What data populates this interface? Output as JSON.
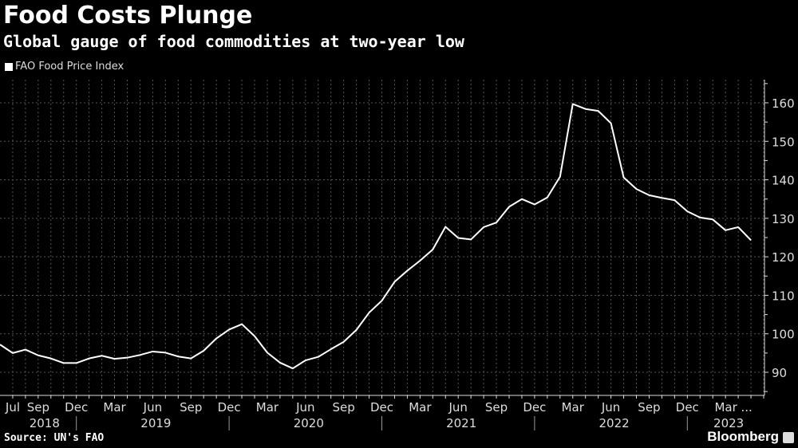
{
  "title": "Food Costs Plunge",
  "subtitle": "Global gauge of food commodities at two-year low",
  "source": "Source: UN's FAO",
  "brand": "Bloomberg",
  "chart_data": {
    "type": "line",
    "title": "Food Costs Plunge",
    "subtitle": "Global gauge of food commodities at two-year low",
    "legend_position": "top-left",
    "grid": true,
    "y_axis_side": "right",
    "ylim": [
      84,
      166
    ],
    "yticks": [
      90,
      100,
      110,
      120,
      130,
      140,
      150,
      160
    ],
    "x_start": "2018-06",
    "x_end": "2023-05",
    "x_tick_labels": [
      "Jul",
      "Sep",
      "Dec",
      "Mar",
      "Jun",
      "Sep",
      "Dec",
      "Mar",
      "Jun",
      "Sep",
      "Dec",
      "Mar",
      "Jun",
      "Sep",
      "Dec",
      "Mar",
      "Jun",
      "Sep",
      "Dec",
      "Mar ..."
    ],
    "x_year_labels": [
      "2018",
      "2019",
      "2020",
      "2021",
      "2022",
      "2023"
    ],
    "colors": {
      "line": "#ffffff",
      "background": "#000000",
      "grid": "#555555"
    },
    "series": [
      {
        "name": "FAO Food Price Index",
        "values": [
          97.2,
          95.0,
          95.9,
          94.4,
          93.6,
          92.4,
          92.4,
          93.6,
          94.3,
          93.5,
          93.8,
          94.5,
          95.4,
          95.1,
          94.1,
          93.6,
          95.6,
          98.8,
          101.1,
          102.5,
          99.4,
          95.1,
          92.5,
          91.0,
          93.1,
          94.0,
          96.0,
          97.9,
          101.0,
          105.5,
          108.6,
          113.5,
          116.4,
          119.0,
          121.9,
          127.8,
          124.9,
          124.5,
          127.7,
          128.9,
          133.0,
          135.0,
          133.6,
          135.4,
          140.8,
          159.7,
          158.4,
          157.9,
          154.7,
          140.6,
          137.6,
          136.0,
          135.3,
          134.7,
          131.8,
          130.2,
          129.7,
          126.9,
          127.7,
          124.3
        ]
      }
    ]
  }
}
